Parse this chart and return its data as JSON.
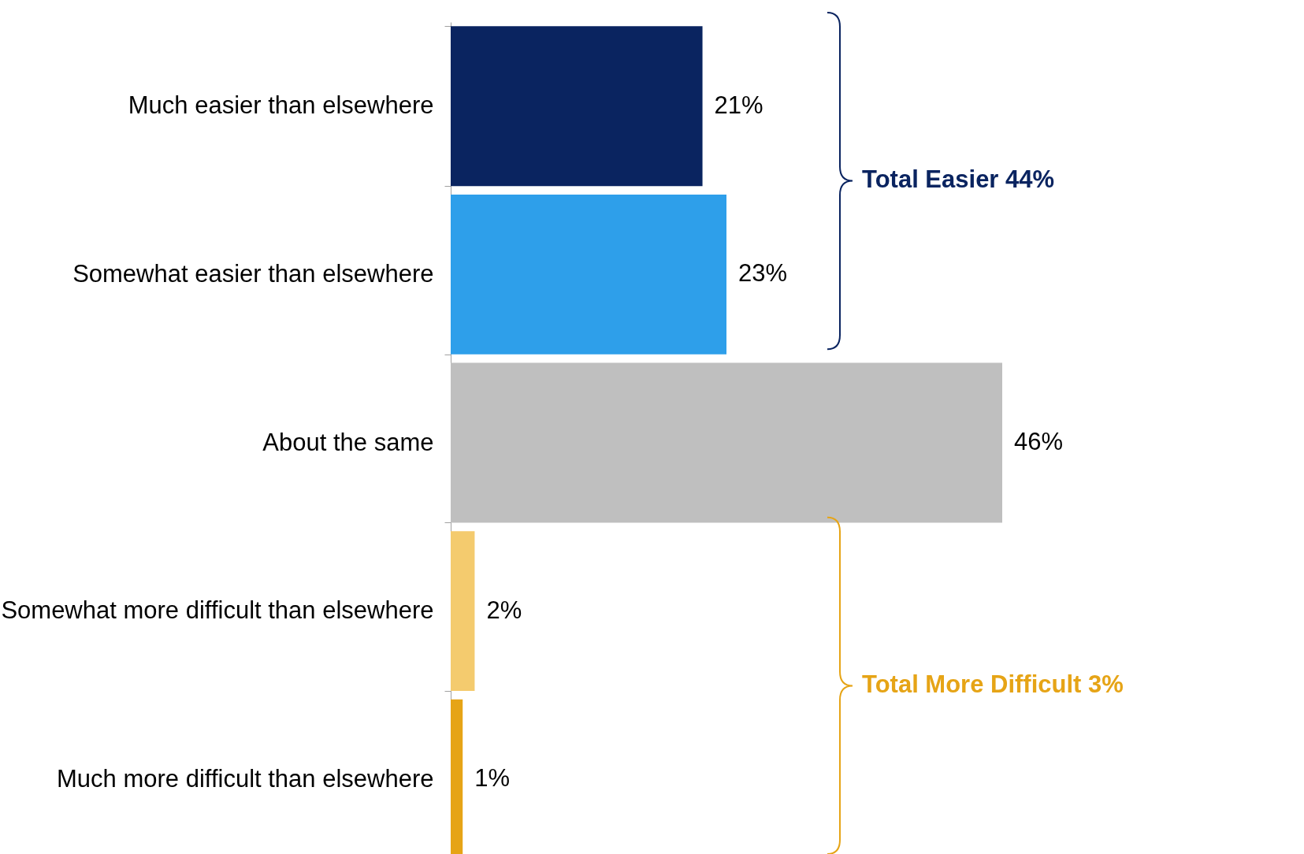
{
  "chart_data": {
    "type": "bar",
    "orientation": "horizontal",
    "categories": [
      "Much easier than elsewhere",
      "Somewhat easier than elsewhere",
      "About the same",
      "Somewhat more difficult than elsewhere",
      "Much more difficult than elsewhere"
    ],
    "values": [
      21,
      23,
      46,
      2,
      1
    ],
    "colors": [
      "#0a2460",
      "#2e9fea",
      "#bfbfbf",
      "#f4cb6e",
      "#e6a416"
    ],
    "value_labels": [
      "21%",
      "23%",
      "46%",
      "2%",
      "1%"
    ],
    "annotations": [
      "Total Easier 44%",
      "Total More Difficult 3%"
    ]
  }
}
